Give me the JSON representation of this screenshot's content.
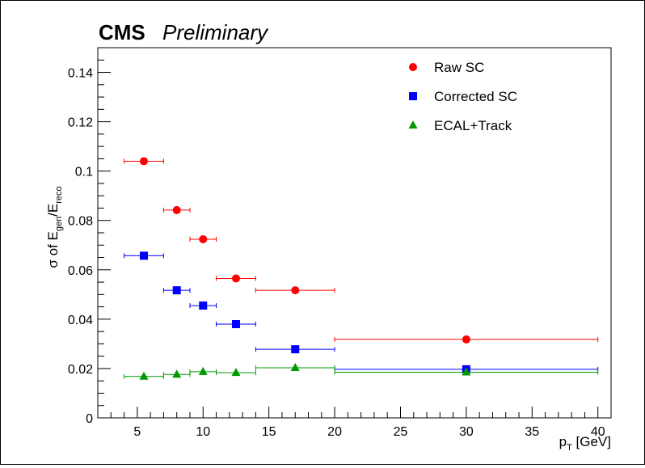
{
  "chart_data": {
    "type": "scatter",
    "title_bold": "CMS",
    "title_italic": "Preliminary",
    "ylabel": "σ of E_gen/E_reco",
    "ylabel_parts": {
      "pre": "σ of E",
      "sub1": "gen",
      "mid": "/E",
      "sub2": "reco"
    },
    "xlabel": "p_T [GeV]",
    "xlabel_parts": {
      "base": "p",
      "sub": "T",
      "post": " [GeV]"
    },
    "xlim": [
      2,
      41
    ],
    "ylim": [
      0,
      0.15
    ],
    "xticks": [
      5,
      10,
      15,
      20,
      25,
      30,
      35,
      40
    ],
    "xtick_labels": [
      "5",
      "10",
      "15",
      "20",
      "25",
      "30",
      "35",
      "40"
    ],
    "yticks": [
      0,
      0.02,
      0.04,
      0.06,
      0.08,
      0.1,
      0.12,
      0.14
    ],
    "ytick_labels": [
      "0",
      "0.02",
      "0.04",
      "0.06",
      "0.08",
      "0.1",
      "0.12",
      "0.14"
    ],
    "grid": false,
    "legend_position": "top-right",
    "series": [
      {
        "name": "Raw SC",
        "marker": "circle",
        "color": "#ff0000",
        "points": [
          {
            "x": 5.5,
            "xlo": 4,
            "xhi": 7,
            "y": 0.104
          },
          {
            "x": 8,
            "xlo": 7,
            "xhi": 9,
            "y": 0.0842
          },
          {
            "x": 10,
            "xlo": 9,
            "xhi": 11,
            "y": 0.0724
          },
          {
            "x": 12.5,
            "xlo": 11,
            "xhi": 14,
            "y": 0.0565
          },
          {
            "x": 17,
            "xlo": 14,
            "xhi": 20,
            "y": 0.0517
          },
          {
            "x": 30,
            "xlo": 20,
            "xhi": 40,
            "y": 0.0318
          }
        ]
      },
      {
        "name": "Corrected SC",
        "marker": "square",
        "color": "#0000ff",
        "points": [
          {
            "x": 5.5,
            "xlo": 4,
            "xhi": 7,
            "y": 0.0657
          },
          {
            "x": 8,
            "xlo": 7,
            "xhi": 9,
            "y": 0.0517
          },
          {
            "x": 10,
            "xlo": 9,
            "xhi": 11,
            "y": 0.0455
          },
          {
            "x": 12.5,
            "xlo": 11,
            "xhi": 14,
            "y": 0.038
          },
          {
            "x": 17,
            "xlo": 14,
            "xhi": 20,
            "y": 0.0278
          },
          {
            "x": 30,
            "xlo": 20,
            "xhi": 40,
            "y": 0.0197
          }
        ]
      },
      {
        "name": "ECAL+Track",
        "marker": "triangle",
        "color": "#009900",
        "points": [
          {
            "x": 5.5,
            "xlo": 4,
            "xhi": 7,
            "y": 0.0168
          },
          {
            "x": 8,
            "xlo": 7,
            "xhi": 9,
            "y": 0.0176
          },
          {
            "x": 10,
            "xlo": 9,
            "xhi": 11,
            "y": 0.0187
          },
          {
            "x": 12.5,
            "xlo": 11,
            "xhi": 14,
            "y": 0.0183
          },
          {
            "x": 17,
            "xlo": 14,
            "xhi": 20,
            "y": 0.0203
          },
          {
            "x": 30,
            "xlo": 20,
            "xhi": 40,
            "y": 0.0185
          }
        ]
      }
    ]
  }
}
